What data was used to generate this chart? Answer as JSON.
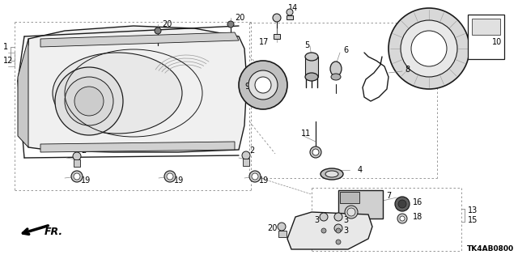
{
  "bg_color": "#ffffff",
  "diagram_code": "TK4AB0800",
  "fr_label": "FR.",
  "figsize": [
    6.4,
    3.2
  ],
  "dpi": 100,
  "line_color": "#1a1a1a",
  "gray": "#888888",
  "light_gray": "#cccccc",
  "mid_gray": "#999999",
  "parts_label_fs": 7.0,
  "code_fs": 6.5
}
